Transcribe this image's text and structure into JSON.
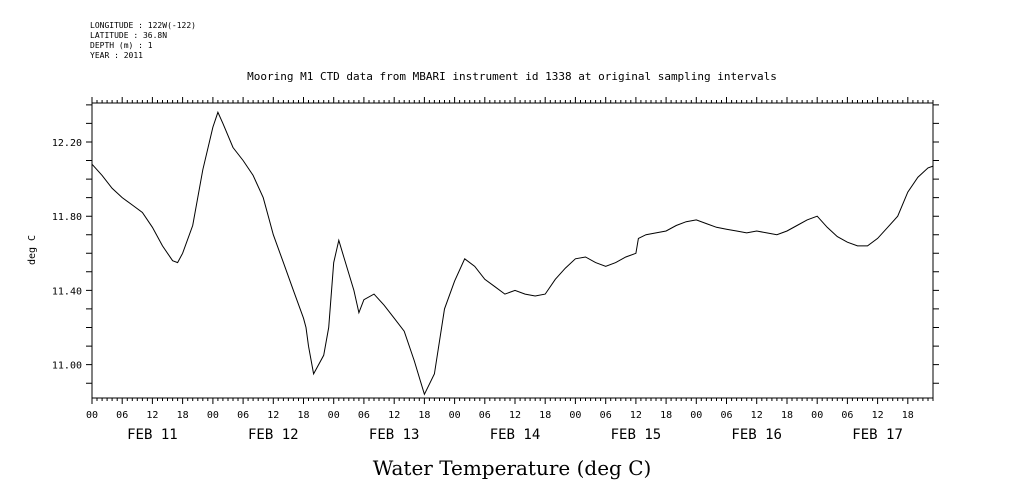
{
  "header": {
    "meta_lines": [
      "LONGITUDE : 122W(-122)",
      "LATITUDE : 36.8N",
      "DEPTH (m) : 1",
      "YEAR : 2011"
    ]
  },
  "chart_data": {
    "type": "line",
    "title": "Mooring M1 CTD data from MBARI instrument id 1338 at original sampling intervals",
    "xlabel": "Water Temperature (deg C)",
    "ylabel": "deg C",
    "ylim": [
      10.82,
      12.41
    ],
    "yticks": [
      "11.00",
      "11.40",
      "11.80",
      "12.20"
    ],
    "xlim_hours": [
      0,
      167
    ],
    "hour_tick_labels": [
      "00",
      "06",
      "12",
      "18",
      "00",
      "06",
      "12",
      "18",
      "00",
      "06",
      "12",
      "18",
      "00",
      "06",
      "12",
      "18",
      "00",
      "06",
      "12",
      "18",
      "00",
      "06",
      "12",
      "18",
      "00",
      "06",
      "12",
      "18"
    ],
    "day_labels": [
      "FEB 11",
      "FEB 12",
      "FEB 13",
      "FEB 14",
      "FEB 15",
      "FEB 16",
      "FEB 17"
    ],
    "grid": false,
    "series": [
      {
        "name": "",
        "color": "#000000",
        "x": [
          0,
          2,
          4,
          6,
          8,
          10,
          12,
          14,
          16,
          17,
          18,
          20,
          22,
          24,
          25,
          26,
          28,
          30,
          32,
          34,
          35,
          36,
          38,
          40,
          42,
          42.5,
          43,
          44,
          46,
          47,
          48,
          49,
          50,
          52,
          53,
          54,
          56,
          58,
          60,
          62,
          64,
          66,
          68,
          70,
          72,
          74,
          76,
          78,
          80,
          82,
          84,
          86,
          88,
          90,
          92,
          94,
          96,
          98,
          100,
          102,
          104,
          106,
          108,
          108.5,
          110,
          112,
          114,
          116,
          118,
          120,
          122,
          124,
          126,
          128,
          130,
          132,
          134,
          136,
          138,
          140,
          142,
          144,
          146,
          148,
          150,
          152,
          154,
          156,
          158,
          160,
          162,
          164,
          166,
          167
        ],
        "y": [
          12.08,
          12.02,
          11.95,
          11.9,
          11.86,
          11.82,
          11.74,
          11.64,
          11.56,
          11.55,
          11.6,
          11.75,
          12.05,
          12.28,
          12.36,
          12.3,
          12.17,
          12.1,
          12.02,
          11.9,
          11.8,
          11.7,
          11.55,
          11.4,
          11.25,
          11.2,
          11.1,
          10.95,
          11.05,
          11.2,
          11.55,
          11.67,
          11.58,
          11.4,
          11.28,
          11.35,
          11.38,
          11.32,
          11.25,
          11.18,
          11.02,
          10.84,
          10.95,
          11.3,
          11.45,
          11.57,
          11.53,
          11.46,
          11.42,
          11.38,
          11.4,
          11.38,
          11.37,
          11.38,
          11.46,
          11.52,
          11.57,
          11.58,
          11.55,
          11.53,
          11.55,
          11.58,
          11.6,
          11.68,
          11.7,
          11.71,
          11.72,
          11.75,
          11.77,
          11.78,
          11.76,
          11.74,
          11.73,
          11.72,
          11.71,
          11.72,
          11.71,
          11.7,
          11.72,
          11.75,
          11.78,
          11.8,
          11.74,
          11.69,
          11.66,
          11.64,
          11.64,
          11.68,
          11.74,
          11.8,
          11.93,
          12.01,
          12.06,
          12.07
        ]
      }
    ]
  }
}
